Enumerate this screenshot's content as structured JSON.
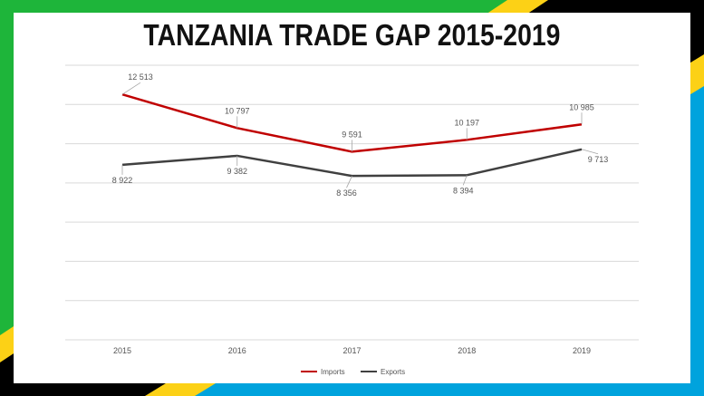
{
  "title": "TANZANIA TRADE GAP 2015-2019",
  "colors": {
    "flag_green": "#1eb53a",
    "flag_yellow": "#fcd116",
    "flag_black": "#000000",
    "flag_blue": "#00a3dd",
    "imports": "#c00000",
    "exports": "#404040",
    "gridline": "#d9d9d9"
  },
  "chart_data": {
    "type": "line",
    "title": "TANZANIA TRADE GAP 2015-2019",
    "xlabel": "",
    "ylabel": "",
    "categories": [
      "2015",
      "2016",
      "2017",
      "2018",
      "2019"
    ],
    "ylim": [
      0,
      14000
    ],
    "y_axis_labels": "hidden",
    "grid": true,
    "legend_position": "bottom",
    "series": [
      {
        "name": "Imports",
        "values": [
          12513,
          10797,
          9591,
          10197,
          10985
        ],
        "labels": [
          "12 513",
          "10 797",
          "9 591",
          "10 197",
          "10 985"
        ],
        "color": "#c00000"
      },
      {
        "name": "Exports",
        "values": [
          8922,
          9382,
          8356,
          8394,
          9713
        ],
        "labels": [
          "8 922",
          "9 382",
          "8 356",
          "8 394",
          "9 713"
        ],
        "color": "#404040"
      }
    ]
  }
}
